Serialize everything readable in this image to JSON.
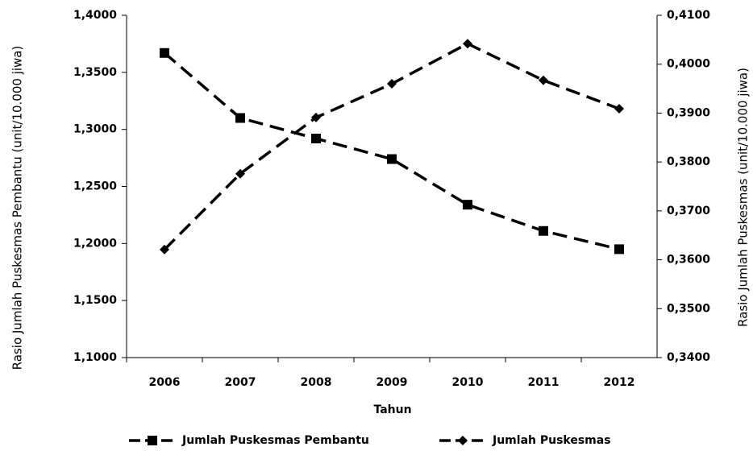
{
  "chart_data": {
    "type": "line",
    "x_label": "Tahun",
    "y_label": "Rasio Jumlah Puskesmas Pembantu (unit/10.000 jiwa)",
    "y2_label": "Rasio Jumlah Puskesmas (unit/10.000 jiwa)",
    "categories": [
      "2006",
      "2007",
      "2008",
      "2009",
      "2010",
      "2011",
      "2012"
    ],
    "series": [
      {
        "name": "Jumlah Puskesmas Pembantu",
        "color": "#000000",
        "marker": "square",
        "values": [
          1.367,
          1.31,
          1.292,
          1.274,
          1.234,
          1.211,
          1.195
        ]
      },
      {
        "name": "Jumlah Puskesmas",
        "color": "#000000",
        "marker": "diamond",
        "axis": "y2",
        "values": [
          0.3621,
          0.3776,
          0.3891,
          0.396,
          0.4042,
          0.3967,
          0.3909
        ]
      }
    ],
    "ylim": [
      1.1,
      1.4
    ],
    "yticks": [
      {
        "value": 1.1,
        "label": "1,1000"
      },
      {
        "value": 1.15,
        "label": "1,1500"
      },
      {
        "value": 1.2,
        "label": "1,2000"
      },
      {
        "value": 1.25,
        "label": "1,2500"
      },
      {
        "value": 1.3,
        "label": "1,3000"
      },
      {
        "value": 1.35,
        "label": "1,3500"
      },
      {
        "value": 1.4,
        "label": "1,4000"
      }
    ],
    "y2lim": [
      0.34,
      0.41
    ],
    "y2ticks": [
      {
        "value": 0.34,
        "label": "0,3400"
      },
      {
        "value": 0.35,
        "label": "0,3500"
      },
      {
        "value": 0.36,
        "label": "0,3600"
      },
      {
        "value": 0.37,
        "label": "0,3700"
      },
      {
        "value": 0.38,
        "label": "0,3800"
      },
      {
        "value": 0.39,
        "label": "0,3900"
      },
      {
        "value": 0.4,
        "label": "0,4000"
      },
      {
        "value": 0.41,
        "label": "0,4100"
      }
    ],
    "grid": false,
    "legend": "bottom",
    "dashed": true
  }
}
